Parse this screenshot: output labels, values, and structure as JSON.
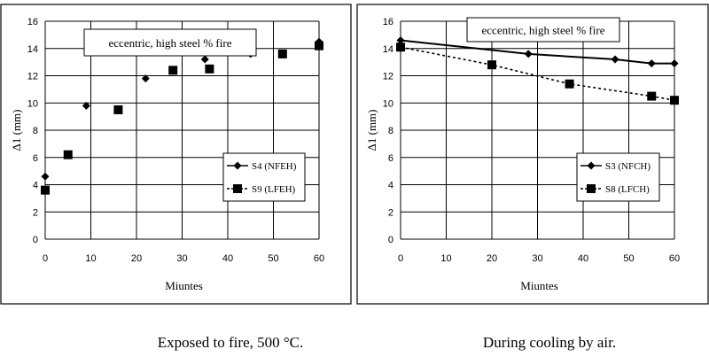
{
  "captions": [
    "Exposed to fire,  500 °C.",
    "During cooling by air."
  ],
  "chart_data": [
    {
      "type": "scatter",
      "annotation": "eccentric, high steel % fire",
      "xlabel": "Miuntes",
      "ylabel": "Δ1 (mm)",
      "xlim": [
        0,
        60
      ],
      "ylim": [
        0,
        16
      ],
      "xticks": [
        0,
        10,
        20,
        30,
        40,
        50,
        60
      ],
      "yticks": [
        0,
        2,
        4,
        6,
        8,
        10,
        12,
        14,
        16
      ],
      "grid": true,
      "legend_position": "lower-right",
      "series": [
        {
          "name": "S4 (NFEH)",
          "marker": "diamond",
          "line": "none",
          "x": [
            0,
            9,
            22,
            35,
            45,
            60
          ],
          "y": [
            4.6,
            9.8,
            11.8,
            13.2,
            13.6,
            14.5
          ]
        },
        {
          "name": "S9 (LFEH)",
          "marker": "square",
          "line": "none",
          "x": [
            0,
            5,
            16,
            28,
            36,
            52,
            60
          ],
          "y": [
            3.6,
            6.2,
            9.5,
            12.4,
            12.5,
            13.6,
            14.2
          ]
        }
      ]
    },
    {
      "type": "line",
      "annotation": "eccentric, high steel % fire",
      "xlabel": "Miuntes",
      "ylabel": "Δ1 (mm)",
      "xlim": [
        0,
        60
      ],
      "ylim": [
        0,
        16
      ],
      "xticks": [
        0,
        10,
        20,
        30,
        40,
        50,
        60
      ],
      "yticks": [
        0,
        2,
        4,
        6,
        8,
        10,
        12,
        14,
        16
      ],
      "grid": true,
      "legend_position": "lower-right",
      "series": [
        {
          "name": "S3 (NFCH)",
          "marker": "diamond",
          "line": "solid",
          "x": [
            0,
            28,
            47,
            55,
            60
          ],
          "y": [
            14.6,
            13.6,
            13.2,
            12.9,
            12.9
          ]
        },
        {
          "name": "S8 (LFCH)",
          "marker": "square",
          "line": "dashed",
          "x": [
            0,
            20,
            37,
            55,
            60
          ],
          "y": [
            14.1,
            12.8,
            11.4,
            10.5,
            10.2
          ]
        }
      ]
    }
  ]
}
